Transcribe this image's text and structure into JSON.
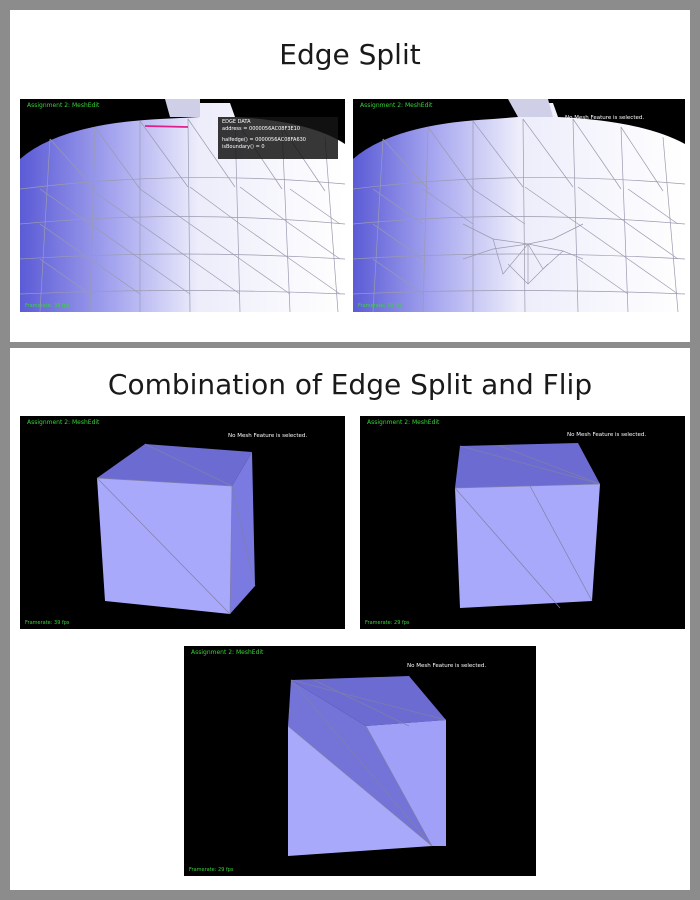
{
  "sections": [
    {
      "title": "Edge Split"
    },
    {
      "title": "Combination of Edge Split and Flip"
    }
  ],
  "hud": {
    "app_title": "Assignment 2: MeshEdit",
    "no_selection": "No Mesh Feature is selected.",
    "framerate_before": "Framerate: 38 fps",
    "framerate_after": "Framerate: 38 fps",
    "framerate_cube1": "Framerate: 39 fps",
    "framerate_cube2": "Framerate: 29 fps",
    "framerate_cube3": "Framerate: 29 fps"
  },
  "edge_data": {
    "heading": "EDGE DATA",
    "address": "address     =  0000056AC08F3E10",
    "halfedge": "halfedge()   =  0000056AC08FA630",
    "boundary": "isBoundary() =  0"
  },
  "colors": {
    "selected_edge": "#e0208a",
    "hud_green": "#38d438",
    "mesh_light": "#b8b8ff",
    "mesh_dark": "#6a6ad0"
  }
}
